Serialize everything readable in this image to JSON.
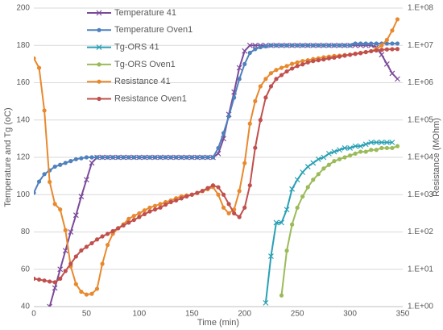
{
  "chart_data": {
    "type": "line",
    "x_label": "Time (min)",
    "y_label": "Temperature and Tg (oC)",
    "y2_label": "Resistance (MOhm)",
    "x": [
      0,
      5,
      10,
      15,
      20,
      25,
      30,
      35,
      40,
      45,
      50,
      55,
      60,
      65,
      70,
      75,
      80,
      85,
      90,
      95,
      100,
      105,
      110,
      115,
      120,
      125,
      130,
      135,
      140,
      145,
      150,
      155,
      160,
      165,
      170,
      175,
      180,
      185,
      190,
      195,
      200,
      205,
      210,
      215,
      220,
      225,
      230,
      235,
      240,
      245,
      250,
      255,
      260,
      265,
      270,
      275,
      280,
      285,
      290,
      295,
      300,
      305,
      310,
      315,
      320,
      325,
      330,
      335,
      340,
      345
    ],
    "xlim": [
      0,
      350
    ],
    "xticks": [
      0,
      50,
      100,
      150,
      200,
      250,
      300,
      350
    ],
    "ylim": [
      40,
      200
    ],
    "yticks": [
      40,
      60,
      80,
      100,
      120,
      140,
      160,
      180,
      200
    ],
    "y2lim": [
      1,
      100000000
    ],
    "y2log": true,
    "y2ticks": [
      {
        "value": 1,
        "label": "1.E+00"
      },
      {
        "value": 10,
        "label": "1.E+01"
      },
      {
        "value": 100,
        "label": "1.E+02"
      },
      {
        "value": 1000,
        "label": "1.E+03"
      },
      {
        "value": 10000,
        "label": "1.E+04"
      },
      {
        "value": 100000,
        "label": "1.E+05"
      },
      {
        "value": 1000000,
        "label": "1.E+06"
      },
      {
        "value": 10000000,
        "label": "1.E+07"
      },
      {
        "value": 100000000,
        "label": "1.E+08"
      }
    ],
    "grid": true,
    "legend": "top-left",
    "series": [
      {
        "name": "Temperature 41",
        "color": "#7a4a9a",
        "marker": "x",
        "values": [
          null,
          null,
          null,
          40,
          50,
          60,
          70,
          80,
          89,
          99,
          108,
          117,
          120,
          120,
          120,
          120,
          120,
          120,
          120,
          120,
          120,
          120,
          120,
          120,
          120,
          120,
          120,
          120,
          120,
          120,
          120,
          120,
          120,
          120,
          120,
          122,
          130,
          143,
          155,
          168,
          177,
          180,
          180,
          180,
          180,
          180,
          180,
          180,
          180,
          180,
          180,
          180,
          180,
          180,
          180,
          180,
          180,
          180,
          180,
          180,
          180,
          180,
          180,
          180,
          180,
          179,
          175,
          170,
          165,
          162
        ]
      },
      {
        "name": "Temperature Oven1",
        "color": "#4f81bd",
        "marker": "circle",
        "values": [
          101,
          107,
          111,
          113,
          115,
          116,
          117,
          118,
          119,
          119.5,
          120,
          120,
          120,
          120,
          120,
          120,
          120,
          120,
          120,
          120,
          120,
          120,
          120,
          120,
          120,
          120,
          120,
          120,
          120,
          120,
          120,
          120,
          120,
          120,
          120,
          125,
          133,
          142,
          152,
          162,
          170,
          176,
          178,
          179,
          179.5,
          180,
          180,
          180,
          180,
          180,
          180,
          180,
          180,
          180,
          180,
          180,
          180,
          180,
          180,
          180,
          180,
          181,
          181,
          181,
          181,
          181,
          181,
          181,
          181,
          181
        ]
      },
      {
        "name": "Tg-ORS 41",
        "color": "#2aa0b4",
        "marker": "x",
        "values": [
          null,
          null,
          null,
          null,
          null,
          null,
          null,
          null,
          null,
          null,
          null,
          null,
          null,
          null,
          null,
          null,
          null,
          null,
          null,
          null,
          null,
          null,
          null,
          null,
          null,
          null,
          null,
          null,
          null,
          null,
          null,
          null,
          null,
          null,
          null,
          null,
          null,
          null,
          null,
          null,
          null,
          null,
          null,
          null,
          42,
          67,
          85,
          85,
          92,
          103,
          108,
          112,
          115,
          117,
          119,
          120,
          122,
          123,
          124,
          125,
          125,
          126,
          126,
          127,
          128,
          128,
          128,
          128,
          128,
          null
        ]
      },
      {
        "name": "Tg-ORS Oven1",
        "color": "#9bbb59",
        "marker": "circle",
        "values": [
          null,
          null,
          null,
          null,
          null,
          null,
          null,
          null,
          null,
          null,
          null,
          null,
          null,
          null,
          null,
          null,
          null,
          null,
          null,
          null,
          null,
          null,
          null,
          null,
          null,
          null,
          null,
          null,
          null,
          null,
          null,
          null,
          null,
          null,
          null,
          null,
          null,
          null,
          null,
          null,
          null,
          null,
          null,
          null,
          null,
          null,
          null,
          46,
          70,
          84,
          93,
          99,
          104,
          108,
          111,
          114,
          116,
          118,
          119,
          120,
          121,
          122,
          123,
          123,
          124,
          124,
          125,
          125,
          125,
          126
        ]
      },
      {
        "name": "Resistance 41",
        "color": "#e8892e",
        "marker": "circle",
        "axis": "y2",
        "values": [
          4500000,
          2500000,
          180000,
          2200,
          560,
          400,
          112,
          12,
          4,
          2.5,
          2.1,
          2.2,
          3,
          14,
          45,
          90,
          126,
          160,
          224,
          270,
          316,
          380,
          450,
          500,
          560,
          630,
          700,
          800,
          900,
          950,
          1000,
          1100,
          1250,
          1400,
          1600,
          1000,
          450,
          316,
          400,
          1250,
          7000,
          80000,
          320000,
          800000,
          1260000,
          1800000,
          2200000,
          2500000,
          2800000,
          3200000,
          3500000,
          3800000,
          4000000,
          4300000,
          4500000,
          4800000,
          5000000,
          5200000,
          5300000,
          5500000,
          5600000,
          6000000,
          6300000,
          6600000,
          7000000,
          8000000,
          10000000,
          14000000,
          25000000,
          50000000
        ]
      },
      {
        "name": "Resistance Oven1",
        "color": "#c0504d",
        "marker": "circle",
        "axis": "y2",
        "values": [
          5.6,
          5.3,
          5,
          4.7,
          4.5,
          5.6,
          9,
          14,
          22,
          32,
          40,
          50,
          63,
          76,
          89,
          105,
          126,
          150,
          178,
          210,
          251,
          300,
          355,
          400,
          450,
          540,
          630,
          700,
          794,
          900,
          1000,
          1120,
          1260,
          1500,
          1780,
          1580,
          1000,
          560,
          316,
          251,
          450,
          1780,
          18000,
          100000,
          400000,
          800000,
          1260000,
          1600000,
          2000000,
          2400000,
          2800000,
          3100000,
          3500000,
          3800000,
          4000000,
          4200000,
          4500000,
          4700000,
          5000000,
          5300000,
          5600000,
          5900000,
          6200000,
          6600000,
          7000000,
          7300000,
          7600000,
          7800000,
          7900000,
          8000000
        ]
      }
    ]
  }
}
